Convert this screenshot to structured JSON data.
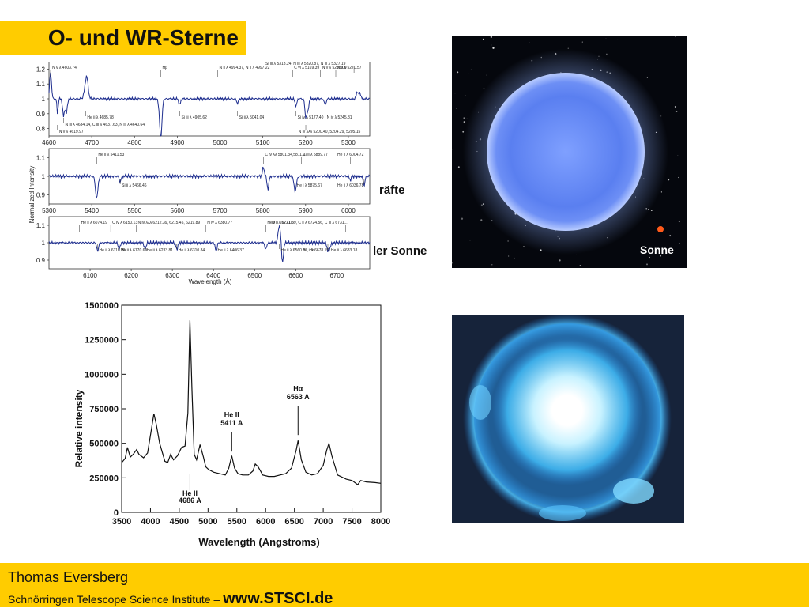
{
  "slide": {
    "title": "O- und WR-Sterne",
    "partial_text_1": "räfte",
    "partial_text_2": "der Sonne"
  },
  "star_image": {
    "label": "Sonne",
    "colors": {
      "star": "#5f86f0",
      "sun_dot": "#ff5a1a"
    }
  },
  "footer": {
    "name": "Thomas Eversberg",
    "institute": "Schnörringen Telescope Science Institute – ",
    "url": "www.STSCI.de",
    "background": "#ffcc00"
  },
  "chart_data": [
    {
      "type": "line",
      "ylabel": "Normalized Intensity",
      "xlabel": "Wavelength (Å)",
      "color": "#1f2f8f",
      "panels": [
        {
          "xlim": [
            4600,
            5350
          ],
          "ylim": [
            0.75,
            1.25
          ],
          "xticks": [
            4600,
            4700,
            4800,
            4900,
            5000,
            5100,
            5200,
            5300
          ],
          "yticks": [
            0.8,
            0.9,
            1,
            1.1,
            1.2
          ],
          "ytick_labels": [
            "0.8",
            "0.9",
            "1",
            "1.1",
            "1.2"
          ],
          "features": [
            {
              "x": 4603.7,
              "d": 0.18,
              "w": 3
            },
            {
              "x": 4619.97,
              "d": -0.1,
              "w": 2
            },
            {
              "x": 4634.1,
              "d": -0.12,
              "w": 3
            },
            {
              "x": 4640.6,
              "d": -0.1,
              "w": 3
            },
            {
              "x": 4685.8,
              "d": -0.08,
              "w": 4
            },
            {
              "x": 4687,
              "d": 0.22,
              "w": 5
            },
            {
              "x": 4861.3,
              "d": -0.26,
              "w": 4
            },
            {
              "x": 4905.6,
              "d": -0.04,
              "w": 3
            },
            {
              "x": 5041,
              "d": -0.03,
              "w": 3
            },
            {
              "x": 5177.4,
              "d": -0.05,
              "w": 3
            },
            {
              "x": 5200.4,
              "d": -0.12,
              "w": 3
            },
            {
              "x": 5205.2,
              "d": -0.08,
              "w": 3
            },
            {
              "x": 5245.8,
              "d": -0.04,
              "w": 3
            },
            {
              "x": 5320.9,
              "d": 0.05,
              "w": 3
            },
            {
              "x": 5327.2,
              "d": 0.04,
              "w": 3
            }
          ],
          "annotations": [
            {
              "x": 4603.74,
              "pos": "top",
              "text": "N v λ 4603.74"
            },
            {
              "x": 4861.3,
              "pos": "top",
              "text": "Hβ"
            },
            {
              "x": 4994.37,
              "pos": "top",
              "text": "N ii λ 4994.37, N ii λ 4997.22"
            },
            {
              "x": 5169.39,
              "pos": "top",
              "text": "C vi λ 5169.39"
            },
            {
              "x": 5235.0,
              "pos": "top",
              "text": "N v λ 5235.00"
            },
            {
              "x": 5270.57,
              "pos": "top",
              "text": "N ii λ 5270.57"
            },
            {
              "x": 5313.24,
              "pos": "top2",
              "text": "Si iii λ 5313.24, N iii λ 5320.87, N iii λ 5327.19"
            },
            {
              "x": 4685.78,
              "pos": "bottom",
              "text": "He ii λ 4685.78"
            },
            {
              "x": 4905.62,
              "pos": "bottom",
              "text": "Si iii λ 4905.62"
            },
            {
              "x": 5041.04,
              "pos": "bottom",
              "text": "Si ii λ 5041.04"
            },
            {
              "x": 5177.4,
              "pos": "bottom",
              "text": "Si iv λ 5177.40"
            },
            {
              "x": 5245.81,
              "pos": "bottom",
              "text": "N iv λ 5245.81"
            },
            {
              "x": 4634.14,
              "pos": "bottom2",
              "text": "N iii λ 4634.14, C iii λ 4637.63, N iii λ 4640.64"
            },
            {
              "x": 4619.97,
              "pos": "bottom3",
              "text": "N v λ 4619.97"
            },
            {
              "x": 5200.4,
              "pos": "bottom3",
              "text": "N iv λλλ 5200.40, 5204.29, 5205.15"
            }
          ]
        },
        {
          "xlim": [
            5300,
            6050
          ],
          "ylim": [
            0.85,
            1.15
          ],
          "xticks": [
            5300,
            5400,
            5500,
            5600,
            5700,
            5800,
            5900,
            6000
          ],
          "yticks": [
            0.9,
            1,
            1.1
          ],
          "ytick_labels": [
            "0.9",
            "1",
            "1.1"
          ],
          "features": [
            {
              "x": 5411.5,
              "d": -0.12,
              "w": 4
            },
            {
              "x": 5466.5,
              "d": -0.03,
              "w": 3
            },
            {
              "x": 5801.3,
              "d": 0.05,
              "w": 3
            },
            {
              "x": 5812,
              "d": -0.07,
              "w": 3
            },
            {
              "x": 5875.7,
              "d": -0.08,
              "w": 4
            },
            {
              "x": 6004.7,
              "d": -0.02,
              "w": 3
            },
            {
              "x": 6036.8,
              "d": -0.05,
              "w": 3
            }
          ],
          "annotations": [
            {
              "x": 5411.53,
              "pos": "top",
              "text": "He ii λ 5411.53"
            },
            {
              "x": 5801.34,
              "pos": "top",
              "text": "C iv  λλ 5801.34,5811.97"
            },
            {
              "x": 5889.77,
              "pos": "top",
              "text": "C iii λ 5889.77"
            },
            {
              "x": 6004.72,
              "pos": "top",
              "text": "He ii λ 6004.72"
            },
            {
              "x": 5466.46,
              "pos": "bottom",
              "text": "Si ii λ 5466.46"
            },
            {
              "x": 5875.67,
              "pos": "bottom",
              "text": "He i λ 5875.67"
            },
            {
              "x": 6036.78,
              "pos": "bottom",
              "text": "He ii λ 6036.78"
            }
          ]
        },
        {
          "xlim": [
            6000,
            6780
          ],
          "ylim": [
            0.85,
            1.15
          ],
          "xticks": [
            6100,
            6200,
            6300,
            6400,
            6500,
            6600,
            6700
          ],
          "yticks": [
            0.9,
            1,
            1.1
          ],
          "ytick_labels": [
            "0.9",
            "1",
            "1.1"
          ],
          "features": [
            {
              "x": 6118.3,
              "d": -0.05,
              "w": 3
            },
            {
              "x": 6170.7,
              "d": -0.04,
              "w": 3
            },
            {
              "x": 6233.8,
              "d": -0.04,
              "w": 3
            },
            {
              "x": 6310.8,
              "d": -0.04,
              "w": 3
            },
            {
              "x": 6406.4,
              "d": -0.05,
              "w": 3
            },
            {
              "x": 6527.1,
              "d": -0.04,
              "w": 3
            },
            {
              "x": 6560.1,
              "d": 0.1,
              "w": 4
            },
            {
              "x": 6568,
              "d": -0.12,
              "w": 3
            },
            {
              "x": 6678.2,
              "d": -0.05,
              "w": 3
            },
            {
              "x": 6683.2,
              "d": -0.03,
              "w": 3
            }
          ],
          "annotations": [
            {
              "x": 6074.19,
              "pos": "top",
              "text": "He ii λ 6074.19"
            },
            {
              "x": 6150.13,
              "pos": "top",
              "text": "C iv λ 6150.13"
            },
            {
              "x": 6212.39,
              "pos": "top",
              "text": "N iv λλλ 6212.39, 6215.45, 6219.89"
            },
            {
              "x": 6380.77,
              "pos": "top",
              "text": "N iv λ 6380.77"
            },
            {
              "x": 6527.06,
              "pos": "top",
              "text": "He ii λ 6527.06"
            },
            {
              "x": 6721.39,
              "pos": "top",
              "text": "O ii λ 6721.39, C ii λ 6724.56, C iii λ 6731..."
            },
            {
              "x": 6118.26,
              "pos": "bottom",
              "text": "He ii λ 6118.26"
            },
            {
              "x": 6170.69,
              "pos": "bottom",
              "text": "He ii λ 6170.69"
            },
            {
              "x": 6233.81,
              "pos": "bottom",
              "text": "He ii λ 6233.81"
            },
            {
              "x": 6310.84,
              "pos": "bottom",
              "text": "He ii λ 6310.84"
            },
            {
              "x": 6406.37,
              "pos": "bottom",
              "text": "He ii λ 6406.37"
            },
            {
              "x": 6560.1,
              "pos": "bottom",
              "text": "He ii λ 6560.10, Hα"
            },
            {
              "x": 6678.15,
              "pos": "bottom",
              "text": "He ii λ 6678.15, He ii λ 6683.18"
            }
          ]
        }
      ]
    },
    {
      "type": "line",
      "ylabel": "Relative intensity",
      "xlabel": "Wavelength (Angstroms)",
      "xlim": [
        3500,
        8000
      ],
      "ylim": [
        0,
        1500000
      ],
      "xticks": [
        3500,
        4000,
        4500,
        5000,
        5500,
        6000,
        6500,
        7000,
        7500,
        8000
      ],
      "yticks": [
        0,
        250000,
        500000,
        750000,
        1000000,
        1250000,
        1500000
      ],
      "color": "#111111",
      "points": [
        [
          3500,
          360000
        ],
        [
          3560,
          390000
        ],
        [
          3600,
          470000
        ],
        [
          3650,
          400000
        ],
        [
          3700,
          420000
        ],
        [
          3760,
          455000
        ],
        [
          3800,
          420000
        ],
        [
          3880,
          395000
        ],
        [
          3950,
          430000
        ],
        [
          4020,
          610000
        ],
        [
          4060,
          715000
        ],
        [
          4100,
          640000
        ],
        [
          4160,
          500000
        ],
        [
          4250,
          370000
        ],
        [
          4300,
          360000
        ],
        [
          4350,
          420000
        ],
        [
          4400,
          380000
        ],
        [
          4470,
          410000
        ],
        [
          4540,
          470000
        ],
        [
          4600,
          480000
        ],
        [
          4650,
          720000
        ],
        [
          4686,
          1390000
        ],
        [
          4720,
          900000
        ],
        [
          4760,
          420000
        ],
        [
          4800,
          380000
        ],
        [
          4861,
          490000
        ],
        [
          4920,
          400000
        ],
        [
          4960,
          330000
        ],
        [
          5010,
          310000
        ],
        [
          5100,
          290000
        ],
        [
          5200,
          280000
        ],
        [
          5300,
          270000
        ],
        [
          5360,
          320000
        ],
        [
          5411,
          410000
        ],
        [
          5460,
          320000
        ],
        [
          5520,
          280000
        ],
        [
          5600,
          270000
        ],
        [
          5700,
          270000
        ],
        [
          5780,
          300000
        ],
        [
          5820,
          350000
        ],
        [
          5870,
          330000
        ],
        [
          5950,
          270000
        ],
        [
          6050,
          260000
        ],
        [
          6150,
          260000
        ],
        [
          6250,
          270000
        ],
        [
          6350,
          280000
        ],
        [
          6450,
          320000
        ],
        [
          6530,
          450000
        ],
        [
          6563,
          520000
        ],
        [
          6620,
          380000
        ],
        [
          6700,
          290000
        ],
        [
          6800,
          270000
        ],
        [
          6900,
          280000
        ],
        [
          7000,
          340000
        ],
        [
          7060,
          450000
        ],
        [
          7100,
          500000
        ],
        [
          7150,
          410000
        ],
        [
          7250,
          270000
        ],
        [
          7400,
          240000
        ],
        [
          7500,
          230000
        ],
        [
          7600,
          200000
        ],
        [
          7650,
          230000
        ],
        [
          7750,
          220000
        ],
        [
          7900,
          215000
        ],
        [
          8000,
          210000
        ]
      ],
      "annotations": [
        {
          "x": 4686,
          "text": "He II",
          "text2": "4686 A",
          "pos": "below"
        },
        {
          "x": 5411,
          "text": "He II",
          "text2": "5411 A",
          "pos": "above"
        },
        {
          "x": 6563,
          "text": "Hα",
          "text2": "6563 A",
          "pos": "above"
        }
      ]
    }
  ]
}
